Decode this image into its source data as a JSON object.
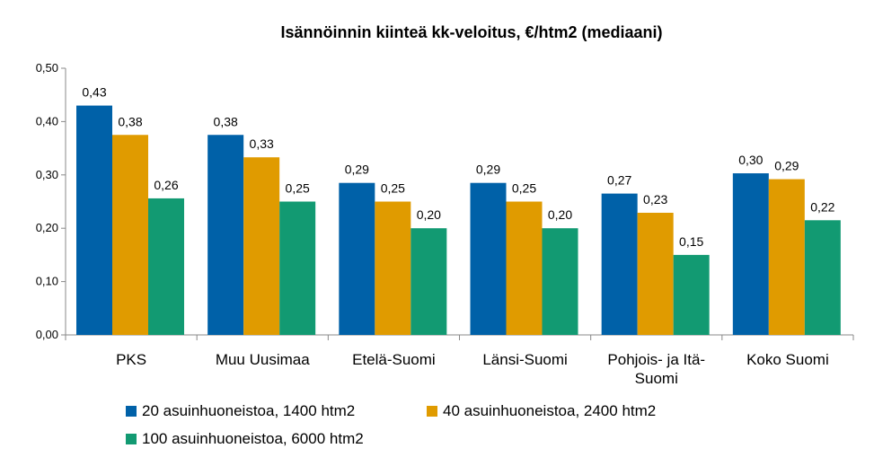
{
  "chart_data": {
    "type": "bar",
    "title": "Isännöinnin kiinteä kk-veloitus, €/htm2 (mediaani)",
    "xlabel": "",
    "ylabel": "",
    "categories": [
      [
        "PKS"
      ],
      [
        "Muu Uusimaa"
      ],
      [
        "Etelä-Suomi"
      ],
      [
        "Länsi-Suomi"
      ],
      [
        "Pohjois- ja Itä-",
        "Suomi"
      ],
      [
        "Koko Suomi"
      ]
    ],
    "ylim": [
      0,
      0.5
    ],
    "yticks": [
      0,
      0.1,
      0.2,
      0.3,
      0.4,
      0.5
    ],
    "ytick_labels": [
      "0,00",
      "0,10",
      "0,20",
      "0,30",
      "0,40",
      "0,50"
    ],
    "grid": false,
    "legend_position": "bottom",
    "series": [
      {
        "name": "20 asuinhuoneistoa, 1400 htm2",
        "color": "#0061a8",
        "values": [
          0.43,
          0.375,
          0.285,
          0.285,
          0.265,
          0.303
        ],
        "labels": [
          "0,43",
          "0,38",
          "0,29",
          "0,29",
          "0,27",
          "0,30"
        ]
      },
      {
        "name": "40 asuinhuoneistoa, 2400 htm2",
        "color": "#e09b00",
        "values": [
          0.375,
          0.333,
          0.25,
          0.25,
          0.229,
          0.292
        ],
        "labels": [
          "0,38",
          "0,33",
          "0,25",
          "0,25",
          "0,23",
          "0,29"
        ]
      },
      {
        "name": "100 asuinhuoneistoa, 6000 htm2",
        "color": "#129a72",
        "values": [
          0.256,
          0.25,
          0.2,
          0.2,
          0.15,
          0.215
        ],
        "labels": [
          "0,26",
          "0,25",
          "0,20",
          "0,20",
          "0,15",
          "0,22"
        ]
      }
    ]
  }
}
